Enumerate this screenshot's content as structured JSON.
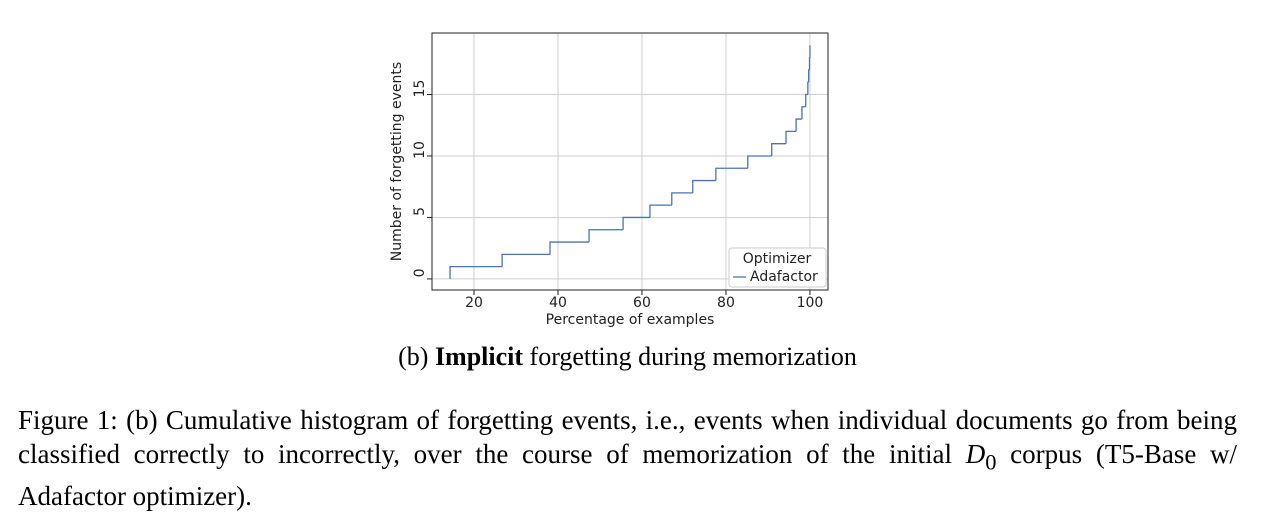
{
  "chart_data": {
    "type": "step",
    "xlabel": "Percentage of examples",
    "ylabel": "Number of forgetting events",
    "x": [
      14.3,
      14.3,
      26.7,
      38.1,
      47.4,
      55.5,
      61.9,
      67.1,
      72.1,
      77.6,
      85.2,
      90.9,
      94.3,
      96.7,
      98.1,
      99.0,
      99.5,
      99.7,
      99.9,
      100
    ],
    "series": [
      {
        "name": "Adafactor",
        "color": "#4c72b0",
        "values": [
          0,
          1,
          2,
          3,
          4,
          5,
          6,
          7,
          8,
          9,
          10,
          11,
          12,
          13,
          14,
          15,
          16,
          17,
          18,
          19
        ]
      }
    ],
    "xlim": [
      10,
      104.3
    ],
    "ylim": [
      -0.9,
      20
    ],
    "xticks": [
      20,
      40,
      60,
      80,
      100
    ],
    "yticks": [
      0,
      5,
      10,
      15
    ],
    "grid": true,
    "legend_title": "Optimizer",
    "legend_position": "lower right"
  },
  "subcaption": {
    "label": "(b)",
    "bold": "Implicit",
    "rest": "forgetting during memorization"
  },
  "caption": {
    "before": "Figure 1: (b) Cumulative histogram of forgetting events, i.e., events when individual documents go from being classified correctly to incorrectly, over the course of memorization of the initial",
    "math": "D",
    "sub": "0",
    "after": "corpus (T5-Base w/ Adafactor optimizer)."
  }
}
